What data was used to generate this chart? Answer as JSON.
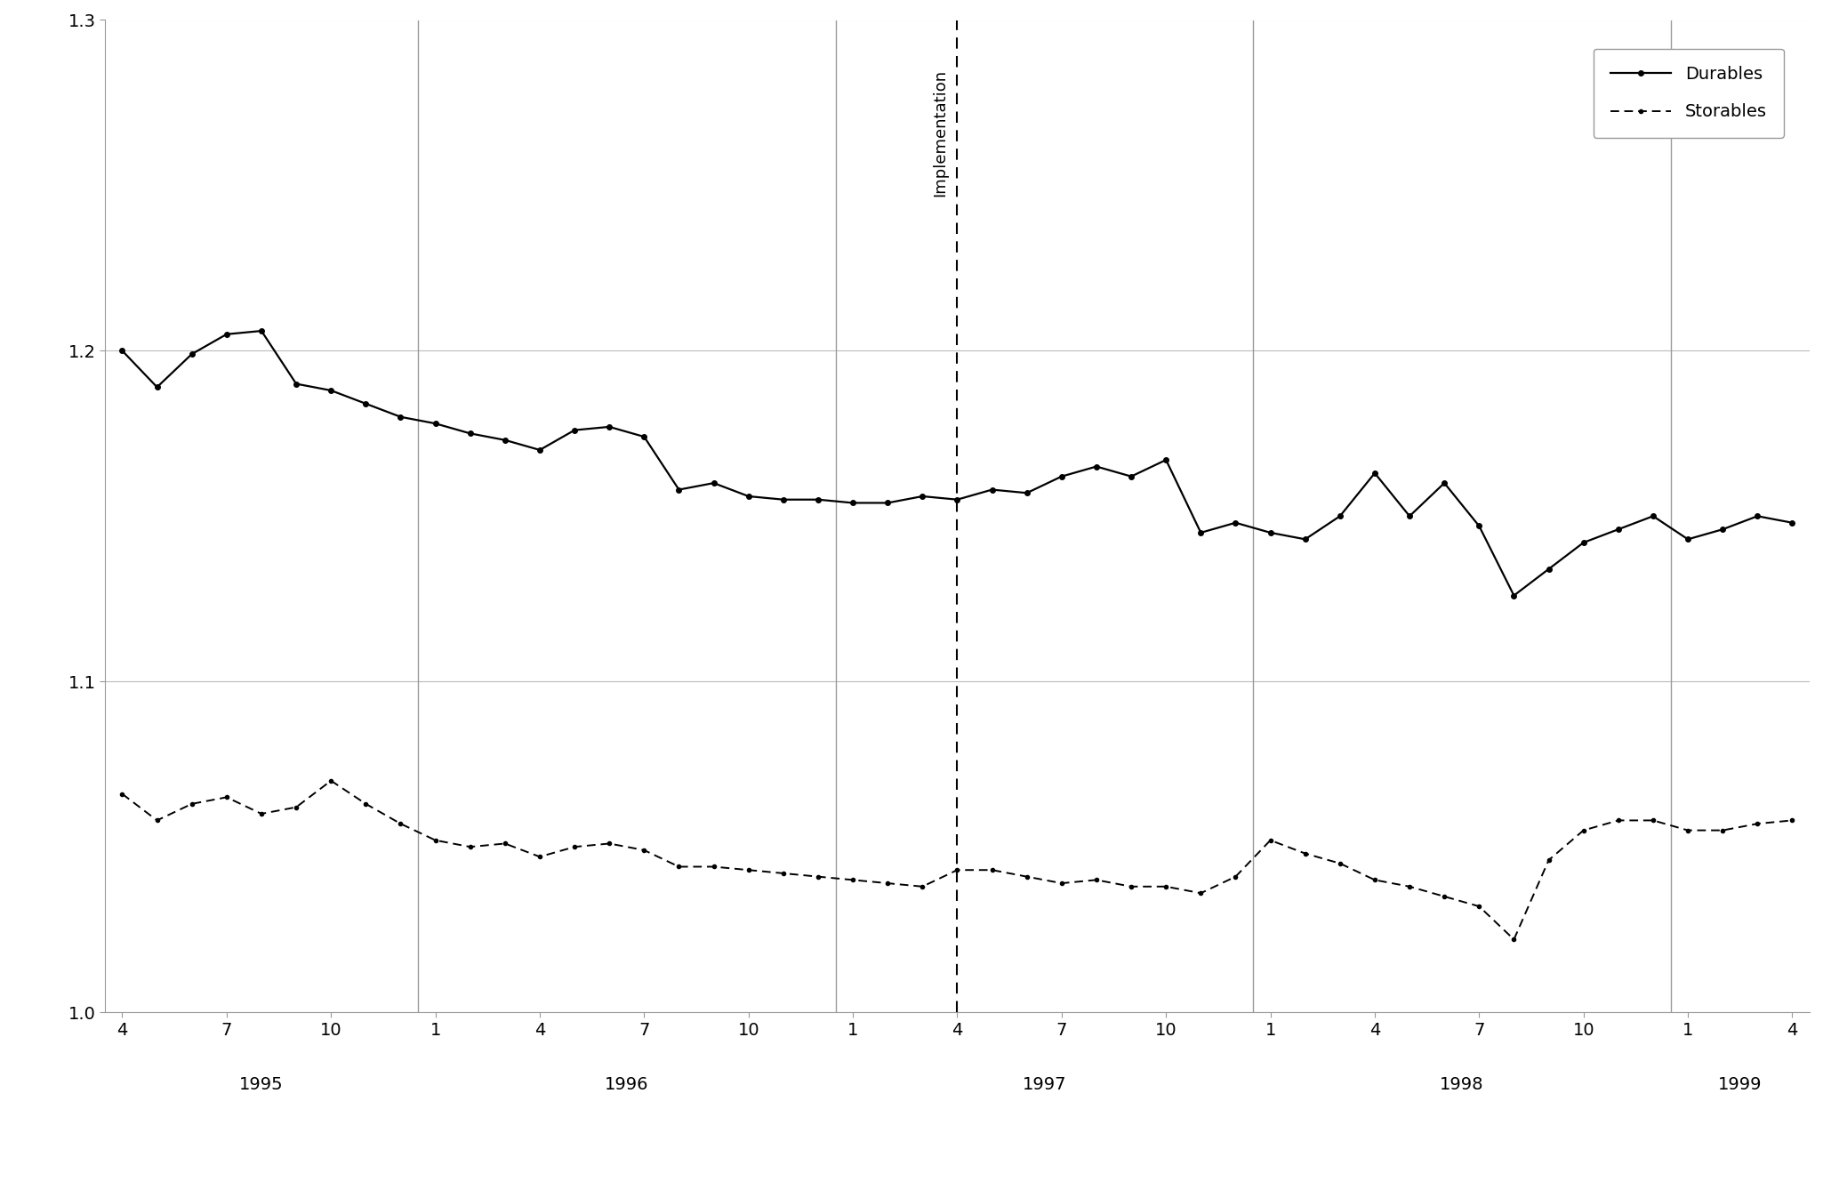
{
  "ylim": [
    1.0,
    1.3
  ],
  "yticks": [
    1.0,
    1.1,
    1.2,
    1.3
  ],
  "implementation_label": "Implementation",
  "legend_labels": [
    "Durables",
    "Storables"
  ],
  "background_color": "#ffffff",
  "line_color": "#000000",
  "grid_color": "#bbbbbb",
  "separator_color": "#999999",
  "year_labels": [
    "1995",
    "1996",
    "1997",
    "1998",
    "1999"
  ],
  "durables": [
    1.2,
    1.189,
    1.199,
    1.205,
    1.206,
    1.19,
    1.188,
    1.184,
    1.18,
    1.178,
    1.175,
    1.173,
    1.17,
    1.176,
    1.177,
    1.174,
    1.158,
    1.16,
    1.156,
    1.155,
    1.155,
    1.154,
    1.154,
    1.156,
    1.155,
    1.158,
    1.157,
    1.162,
    1.165,
    1.162,
    1.167,
    1.145,
    1.148,
    1.145,
    1.143,
    1.15,
    1.163,
    1.15,
    1.16,
    1.147,
    1.126,
    1.134,
    1.142,
    1.146,
    1.15,
    1.143,
    1.146,
    1.15,
    1.148
  ],
  "storables": [
    1.066,
    1.058,
    1.063,
    1.065,
    1.06,
    1.062,
    1.07,
    1.063,
    1.057,
    1.052,
    1.05,
    1.051,
    1.047,
    1.05,
    1.051,
    1.049,
    1.044,
    1.044,
    1.043,
    1.042,
    1.041,
    1.04,
    1.039,
    1.038,
    1.043,
    1.043,
    1.041,
    1.039,
    1.04,
    1.038,
    1.038,
    1.036,
    1.041,
    1.052,
    1.048,
    1.045,
    1.04,
    1.038,
    1.035,
    1.032,
    1.022,
    1.046,
    1.055,
    1.058,
    1.058,
    1.055,
    1.055,
    1.057,
    1.058
  ]
}
